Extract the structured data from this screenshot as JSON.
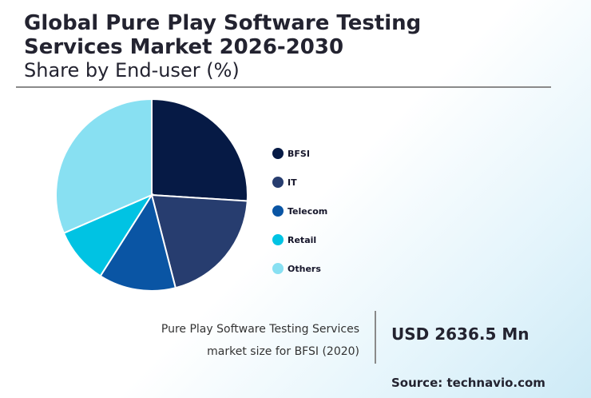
{
  "title": "Global Pure Play Software Testing Services Market 2026-2030",
  "subtitle": "Share by End-user (%)",
  "chart_data": {
    "type": "pie",
    "title": "Share by End-user (%)",
    "categories": [
      "BFSI",
      "IT",
      "Telecom",
      "Retail",
      "Others"
    ],
    "values": [
      26,
      20,
      13,
      9.5,
      31.5
    ],
    "colors": [
      "#061a45",
      "#273d6f",
      "#0a55a4",
      "#00c3e3",
      "#88e0f2"
    ],
    "start_angle_deg": 0,
    "direction": "clockwise",
    "legend_position": "right"
  },
  "caption": {
    "line1": "Pure Play Software Testing Services",
    "line2": "market size for BFSI (2020)"
  },
  "highlight_value": "USD 2636.5 Mn",
  "source": "Source: technavio.com"
}
